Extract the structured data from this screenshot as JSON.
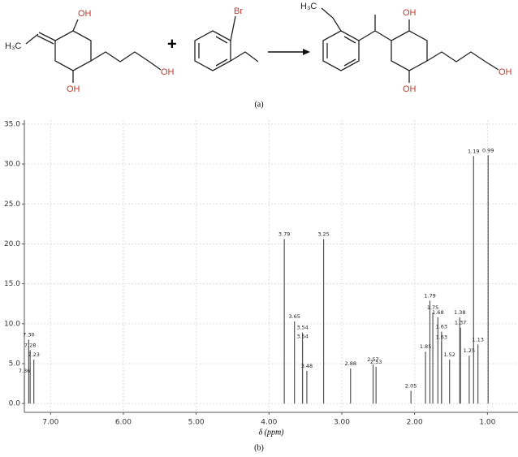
{
  "scheme": {
    "reactant1": {
      "top": "OH",
      "bottom": "OH",
      "chain_end": "OH",
      "methyl": "H₃C"
    },
    "plus": "+",
    "reactant2": {
      "halogen": "Br"
    },
    "product": {
      "methyl": "H₃C",
      "top": "OH",
      "bottom": "OH",
      "chain_end": "OH"
    },
    "caption": "(a)"
  },
  "chart_data": {
    "type": "spectrum",
    "xlabel": "δ (ppm)",
    "caption": "(b)",
    "xlim": [
      7.36,
      0.58
    ],
    "ylim": [
      -1.1,
      35.5
    ],
    "xticks": [
      {
        "value": 7,
        "label": "7.00"
      },
      {
        "value": 6,
        "label": "6.00"
      },
      {
        "value": 5,
        "label": "5.00"
      },
      {
        "value": 4,
        "label": "4.00"
      },
      {
        "value": 3,
        "label": "3.00"
      },
      {
        "value": 2,
        "label": "2.00"
      },
      {
        "value": 1,
        "label": "1.00"
      }
    ],
    "yticks": [
      {
        "value": 0,
        "label": "0.0"
      },
      {
        "value": 5,
        "label": "5.0"
      },
      {
        "value": 10,
        "label": "10.0"
      },
      {
        "value": 15,
        "label": "15.0"
      },
      {
        "value": 20,
        "label": "20.0"
      },
      {
        "value": 25,
        "label": "25.0"
      },
      {
        "value": 30,
        "label": "30.0"
      },
      {
        "value": 35,
        "label": "35.0"
      }
    ],
    "grid": true,
    "color": "#555555",
    "x": [
      7.36,
      7.3,
      7.28,
      7.23,
      3.79,
      3.65,
      3.54,
      3.54,
      3.48,
      3.25,
      2.88,
      2.57,
      2.53,
      2.05,
      1.85,
      1.79,
      1.75,
      1.68,
      1.63,
      1.63,
      1.52,
      1.38,
      1.37,
      1.25,
      1.19,
      1.13,
      0.99
    ],
    "x_labels": [
      "7.36",
      "7.30",
      "7.28",
      "7.23",
      "3.79",
      "3.65",
      "3.54",
      "3.54",
      "3.48",
      "3.25",
      "2.88",
      "2.57",
      "2.53",
      "2.05",
      "1.85",
      "1.79",
      "1.75",
      "1.68",
      "1.63",
      "1.63",
      "1.52",
      "1.38",
      "1.37",
      "1.25",
      "1.19",
      "1.13",
      "0.99"
    ],
    "values": [
      3.5,
      8.0,
      6.7,
      5.5,
      20.6,
      10.3,
      8.9,
      7.8,
      4.1,
      20.6,
      4.4,
      4.9,
      4.6,
      1.6,
      6.5,
      12.9,
      11.4,
      10.8,
      9.0,
      7.7,
      5.5,
      10.8,
      9.5,
      6.0,
      31.0,
      7.4,
      31.1
    ]
  }
}
